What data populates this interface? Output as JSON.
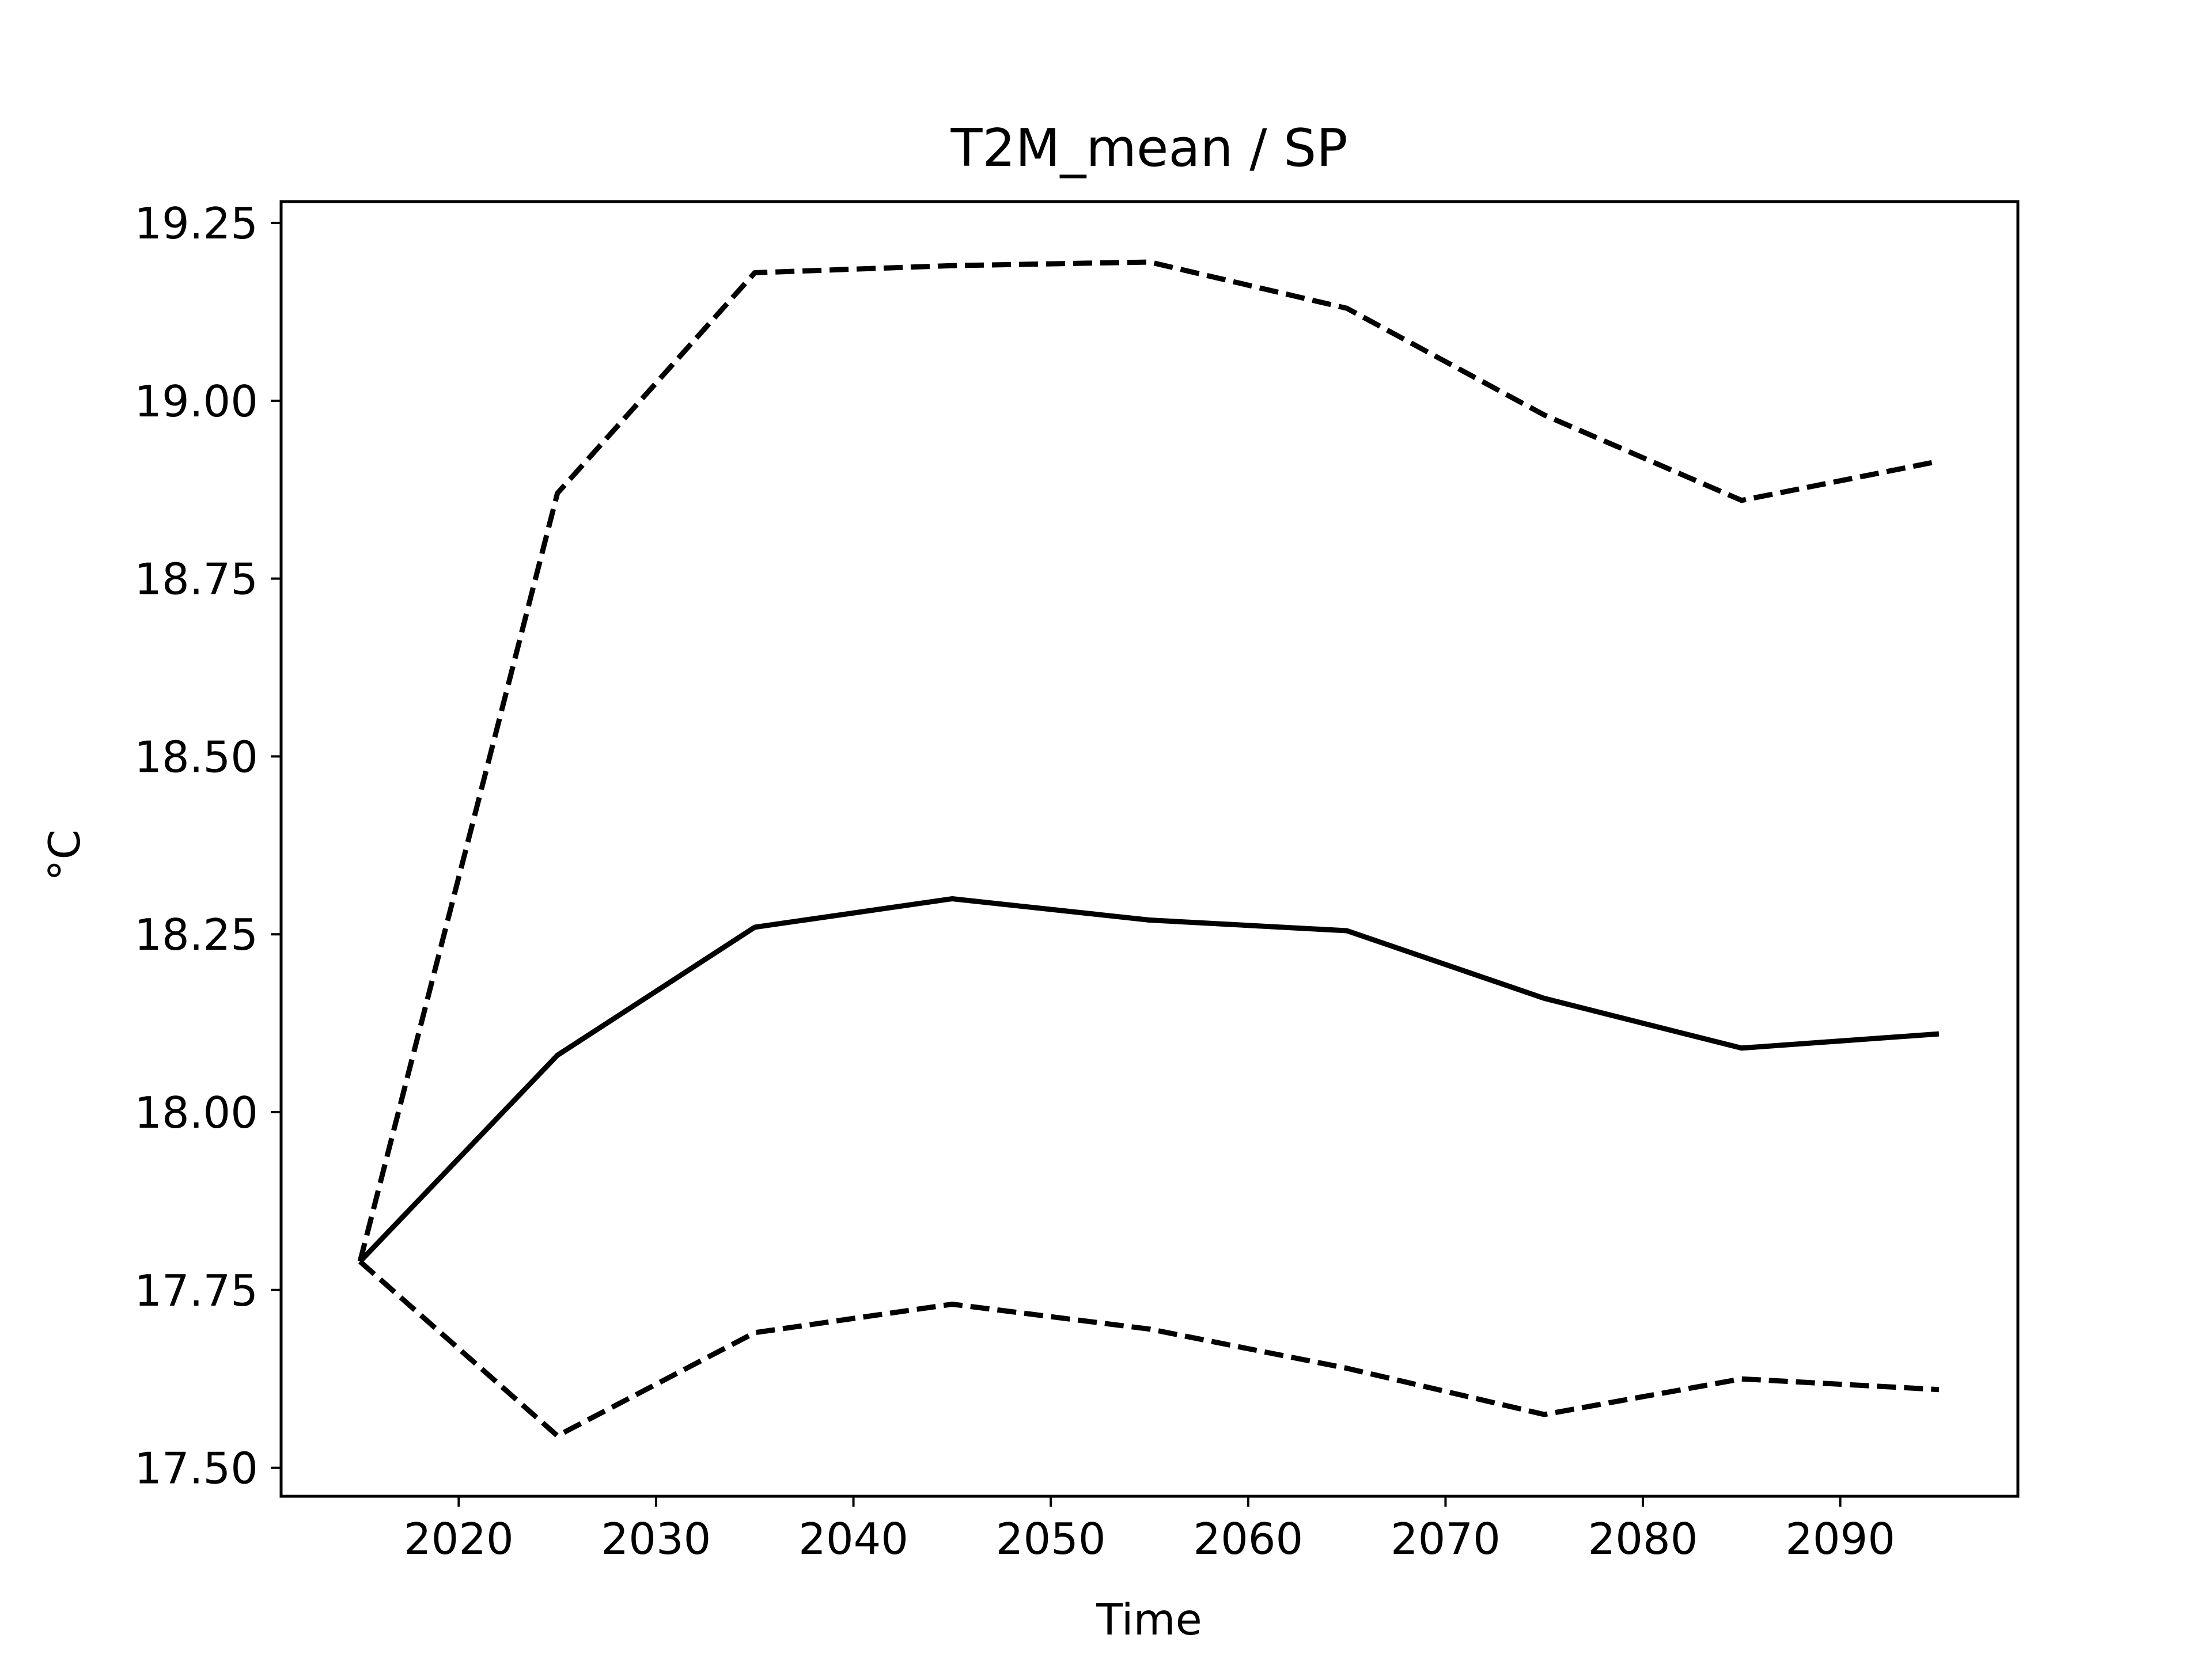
{
  "chart_data": {
    "type": "line",
    "title": "T2M_mean / SP",
    "xlabel": "Time",
    "ylabel": "°C",
    "x": [
      2015,
      2025,
      2035,
      2045,
      2055,
      2065,
      2075,
      2085,
      2095
    ],
    "series": [
      {
        "style": "solid",
        "color": "#000000",
        "values": [
          17.79,
          18.08,
          18.26,
          18.3,
          18.27,
          18.255,
          18.16,
          18.09,
          18.11
        ]
      },
      {
        "style": "dashed",
        "color": "#000000",
        "values": [
          17.79,
          18.87,
          19.18,
          19.19,
          19.195,
          19.13,
          18.98,
          18.86,
          18.915
        ]
      },
      {
        "style": "dashed",
        "color": "#000000",
        "values": [
          17.79,
          17.545,
          17.69,
          17.73,
          17.695,
          17.64,
          17.575,
          17.625,
          17.61
        ]
      }
    ],
    "xlim": [
      2011,
      2099
    ],
    "ylim": [
      17.46,
      19.28
    ],
    "xticks": [
      2020,
      2030,
      2040,
      2050,
      2060,
      2070,
      2080,
      2090
    ],
    "xtick_labels": [
      "2020",
      "2030",
      "2040",
      "2050",
      "2060",
      "2070",
      "2080",
      "2090"
    ],
    "yticks": [
      17.5,
      17.75,
      18.0,
      18.25,
      18.5,
      18.75,
      19.0,
      19.25
    ],
    "ytick_labels": [
      "17.50",
      "17.75",
      "18.00",
      "18.25",
      "18.50",
      "18.75",
      "19.00",
      "19.25"
    ],
    "grid": false,
    "legend": "none"
  }
}
